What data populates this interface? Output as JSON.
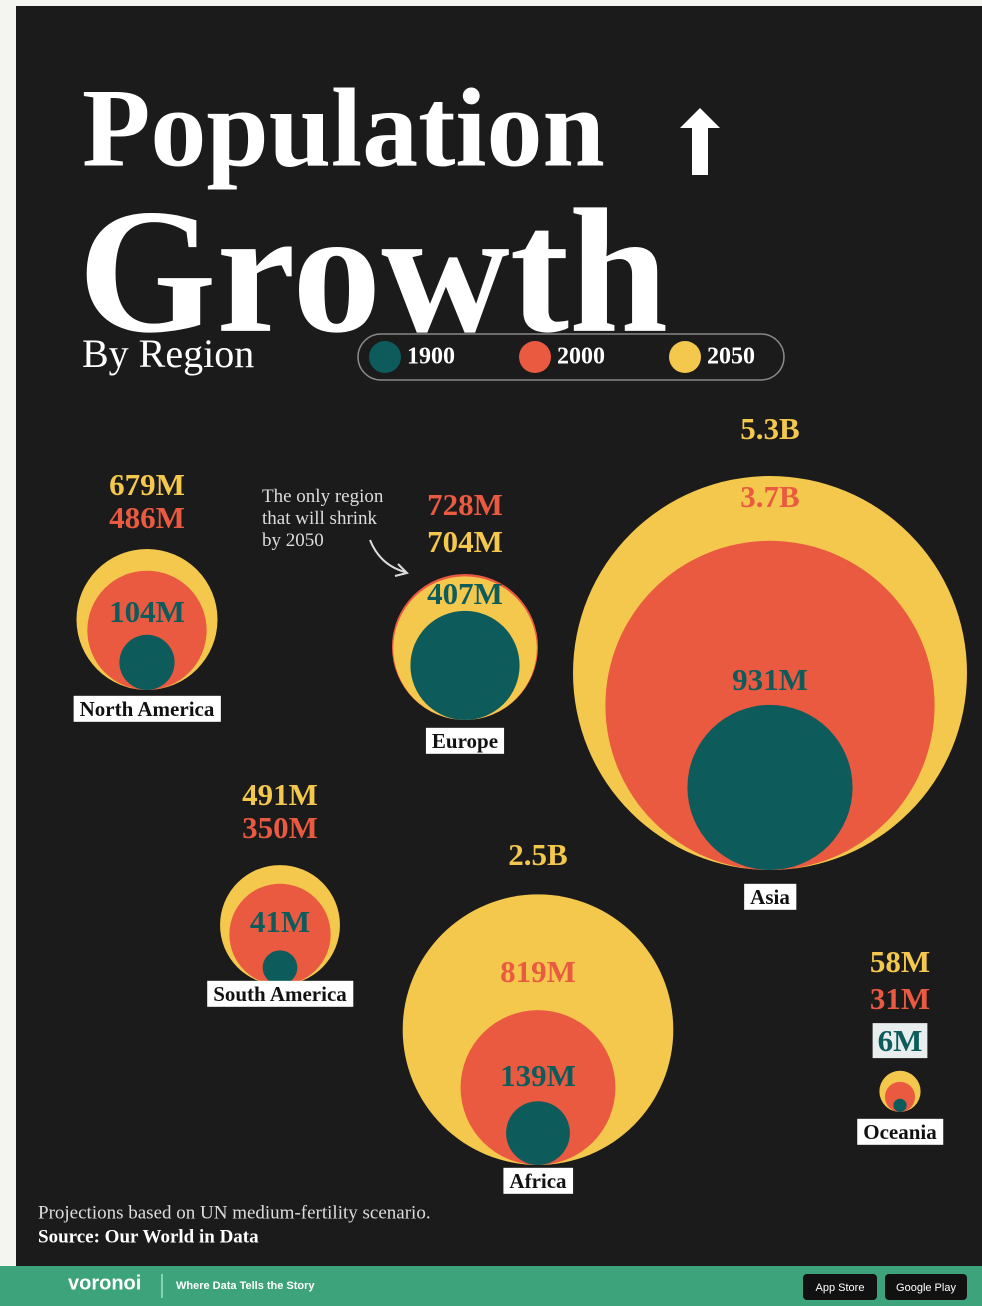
{
  "chart_data": {
    "type": "bubble",
    "title": "Population",
    "title_line2": "Growth",
    "subtitle": "By Region",
    "annotation": "The only region that will shrink by 2050",
    "categories": [
      "North America",
      "Europe",
      "Asia",
      "South America",
      "Africa",
      "Oceania"
    ],
    "series": [
      {
        "name": "1900",
        "color": "#0e5b5c",
        "values": [
          104,
          407,
          931,
          41,
          139,
          6
        ],
        "value_labels": [
          "104M",
          "407M",
          "931M",
          "41M",
          "139M",
          "6M"
        ]
      },
      {
        "name": "2000",
        "color": "#ea5a41",
        "values": [
          486,
          728,
          3700,
          350,
          819,
          31
        ],
        "value_labels": [
          "486M",
          "728M",
          "3.7B",
          "350M",
          "819M",
          "31M"
        ]
      },
      {
        "name": "2050",
        "color": "#f4c84c",
        "values": [
          679,
          704,
          5300,
          491,
          2500,
          58
        ],
        "value_labels": [
          "679M",
          "704M",
          "5.3B",
          "491M",
          "2.5B",
          "58M"
        ]
      }
    ],
    "note": "Projections based on UN medium-fertility scenario.",
    "source": "Source: Our World in Data"
  },
  "footer": {
    "brand": "voronoi",
    "tagline": "Where Data Tells the Story",
    "app_store": "App Store",
    "google_play": "Google Play"
  }
}
